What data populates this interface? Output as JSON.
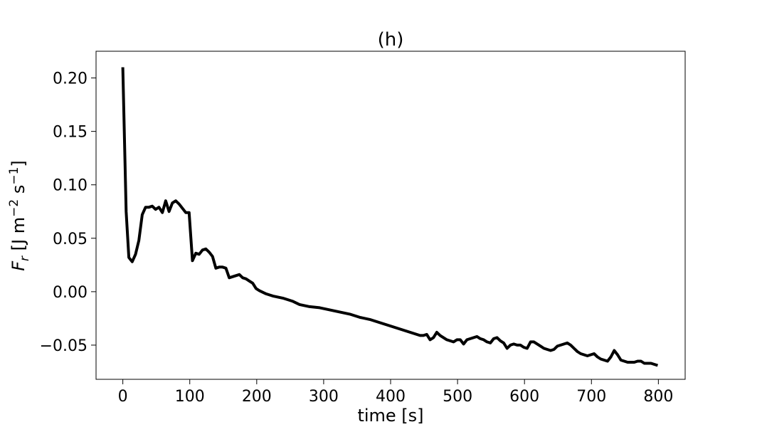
{
  "chart_data": {
    "type": "line",
    "title": "(h)",
    "xlabel": "time [s]",
    "ylabel_main": "F",
    "ylabel_sub": "r",
    "ylabel_units_open": " [J m",
    "ylabel_exp1": "−2",
    "ylabel_units_mid": " s",
    "ylabel_exp2": "−1",
    "ylabel_units_close": "]",
    "xlim": [
      -40,
      840
    ],
    "ylim": [
      -0.082,
      0.225
    ],
    "xticks": [
      0,
      100,
      200,
      300,
      400,
      500,
      600,
      700,
      800
    ],
    "xtick_labels": [
      "0",
      "100",
      "200",
      "300",
      "400",
      "500",
      "600",
      "700",
      "800"
    ],
    "yticks": [
      -0.05,
      0.0,
      0.05,
      0.1,
      0.15,
      0.2
    ],
    "ytick_labels": [
      "−0.05",
      "0.00",
      "0.05",
      "0.10",
      "0.15",
      "0.20"
    ],
    "grid": false,
    "line_color": "#000000",
    "series": [
      {
        "x": [
          0,
          5,
          9,
          14,
          19,
          24,
          29,
          34,
          39,
          44,
          49,
          54,
          59,
          64,
          69,
          74,
          79,
          84,
          89,
          94,
          99,
          104,
          109,
          114,
          119,
          124,
          129,
          134,
          139,
          144,
          149,
          154,
          159,
          164,
          169,
          174,
          179,
          184,
          189,
          194,
          199,
          204,
          214,
          224,
          239,
          254,
          264,
          279,
          294,
          309,
          324,
          339,
          354,
          369,
          384,
          399,
          414,
          429,
          444,
          449,
          454,
          459,
          464,
          469,
          474,
          479,
          484,
          489,
          494,
          499,
          504,
          509,
          514,
          519,
          524,
          529,
          534,
          539,
          544,
          549,
          554,
          559,
          564,
          569,
          574,
          579,
          584,
          589,
          594,
          599,
          604,
          609,
          614,
          619,
          624,
          629,
          634,
          639,
          644,
          649,
          654,
          659,
          664,
          669,
          674,
          679,
          684,
          689,
          694,
          699,
          704,
          709,
          714,
          719,
          724,
          729,
          734,
          739,
          744,
          749,
          754,
          759,
          764,
          769,
          774,
          779,
          784,
          789,
          794,
          799
        ],
        "y": [
          0.21,
          0.075,
          0.032,
          0.028,
          0.035,
          0.048,
          0.072,
          0.079,
          0.079,
          0.08,
          0.077,
          0.079,
          0.074,
          0.085,
          0.075,
          0.083,
          0.085,
          0.082,
          0.078,
          0.074,
          0.074,
          0.029,
          0.036,
          0.035,
          0.039,
          0.04,
          0.037,
          0.033,
          0.022,
          0.023,
          0.023,
          0.022,
          0.013,
          0.014,
          0.015,
          0.016,
          0.013,
          0.012,
          0.01,
          0.008,
          0.003,
          0.001,
          -0.002,
          -0.004,
          -0.006,
          -0.009,
          -0.012,
          -0.014,
          -0.015,
          -0.017,
          -0.019,
          -0.021,
          -0.024,
          -0.026,
          -0.029,
          -0.032,
          -0.035,
          -0.038,
          -0.041,
          -0.041,
          -0.04,
          -0.045,
          -0.043,
          -0.038,
          -0.041,
          -0.043,
          -0.045,
          -0.046,
          -0.047,
          -0.045,
          -0.045,
          -0.049,
          -0.045,
          -0.044,
          -0.043,
          -0.042,
          -0.044,
          -0.045,
          -0.047,
          -0.048,
          -0.044,
          -0.043,
          -0.046,
          -0.048,
          -0.053,
          -0.05,
          -0.049,
          -0.05,
          -0.05,
          -0.052,
          -0.053,
          -0.047,
          -0.047,
          -0.049,
          -0.051,
          -0.053,
          -0.054,
          -0.055,
          -0.054,
          -0.051,
          -0.05,
          -0.049,
          -0.048,
          -0.05,
          -0.053,
          -0.056,
          -0.058,
          -0.059,
          -0.06,
          -0.059,
          -0.058,
          -0.061,
          -0.063,
          -0.064,
          -0.065,
          -0.061,
          -0.055,
          -0.059,
          -0.064,
          -0.065,
          -0.066,
          -0.066,
          -0.066,
          -0.065,
          -0.065,
          -0.067,
          -0.067,
          -0.067,
          -0.068,
          -0.069
        ]
      }
    ]
  }
}
